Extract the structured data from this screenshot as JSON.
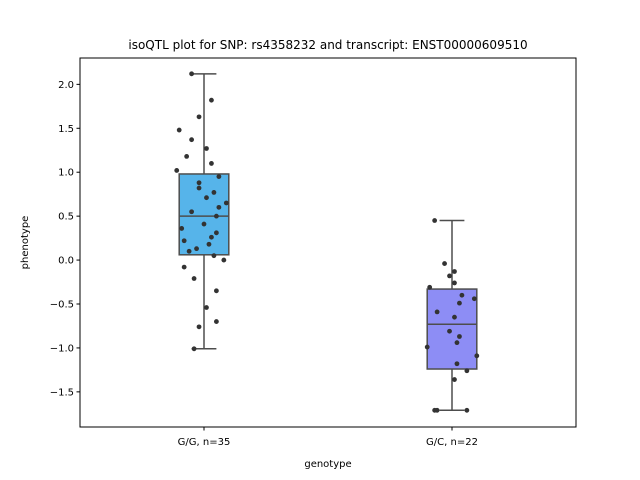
{
  "chart_data": {
    "type": "box",
    "title": "isoQTL plot for SNP: rs4358232 and transcript: ENST00000609510",
    "xlabel": "genotype",
    "ylabel": "phenotype",
    "ylim": [
      -1.9,
      2.3
    ],
    "yticks": [
      -1.5,
      -1.0,
      -0.5,
      0.0,
      0.5,
      1.0,
      1.5,
      2.0
    ],
    "ytick_labels": [
      "−1.5",
      "−1.0",
      "−0.5",
      "0.0",
      "0.5",
      "1.0",
      "1.5",
      "2.0"
    ],
    "grid": false,
    "categories": [
      "G/G, n=35",
      "G/C, n=22"
    ],
    "colors": {
      "box": [
        "#56b4ea",
        "#8d8df5"
      ],
      "line": "#4d4d4d",
      "point": "#333333"
    },
    "boxes": [
      {
        "category": "G/G, n=35",
        "whisker_low": -1.01,
        "q1": 0.06,
        "median": 0.5,
        "q3": 0.98,
        "whisker_high": 2.12,
        "points": [
          {
            "dx": -0.05,
            "y": 2.12
          },
          {
            "dx": 0.03,
            "y": 1.82
          },
          {
            "dx": -0.02,
            "y": 1.63
          },
          {
            "dx": -0.1,
            "y": 1.48
          },
          {
            "dx": -0.05,
            "y": 1.37
          },
          {
            "dx": 0.01,
            "y": 1.27
          },
          {
            "dx": -0.07,
            "y": 1.18
          },
          {
            "dx": 0.03,
            "y": 1.1
          },
          {
            "dx": -0.11,
            "y": 1.02
          },
          {
            "dx": 0.06,
            "y": 0.95
          },
          {
            "dx": -0.02,
            "y": 0.88
          },
          {
            "dx": -0.02,
            "y": 0.82
          },
          {
            "dx": 0.04,
            "y": 0.77
          },
          {
            "dx": 0.01,
            "y": 0.71
          },
          {
            "dx": 0.09,
            "y": 0.65
          },
          {
            "dx": 0.06,
            "y": 0.6
          },
          {
            "dx": -0.05,
            "y": 0.55
          },
          {
            "dx": 0.05,
            "y": 0.5
          },
          {
            "dx": 0.0,
            "y": 0.41
          },
          {
            "dx": -0.09,
            "y": 0.36
          },
          {
            "dx": 0.05,
            "y": 0.31
          },
          {
            "dx": 0.03,
            "y": 0.26
          },
          {
            "dx": -0.08,
            "y": 0.22
          },
          {
            "dx": 0.02,
            "y": 0.18
          },
          {
            "dx": -0.03,
            "y": 0.13
          },
          {
            "dx": -0.06,
            "y": 0.1
          },
          {
            "dx": 0.04,
            "y": 0.05
          },
          {
            "dx": 0.08,
            "y": 0.0
          },
          {
            "dx": -0.08,
            "y": -0.08
          },
          {
            "dx": -0.04,
            "y": -0.21
          },
          {
            "dx": 0.05,
            "y": -0.35
          },
          {
            "dx": 0.01,
            "y": -0.54
          },
          {
            "dx": 0.05,
            "y": -0.7
          },
          {
            "dx": -0.02,
            "y": -0.76
          },
          {
            "dx": -0.04,
            "y": -1.01
          }
        ]
      },
      {
        "category": "G/C, n=22",
        "whisker_low": -1.71,
        "q1": -1.24,
        "median": -0.73,
        "q3": -0.33,
        "whisker_high": 0.45,
        "points": [
          {
            "dx": -0.07,
            "y": 0.45
          },
          {
            "dx": -0.03,
            "y": -0.04
          },
          {
            "dx": 0.01,
            "y": -0.13
          },
          {
            "dx": -0.01,
            "y": -0.18
          },
          {
            "dx": 0.01,
            "y": -0.26
          },
          {
            "dx": -0.09,
            "y": -0.31
          },
          {
            "dx": 0.04,
            "y": -0.4
          },
          {
            "dx": 0.09,
            "y": -0.44
          },
          {
            "dx": 0.03,
            "y": -0.49
          },
          {
            "dx": -0.06,
            "y": -0.59
          },
          {
            "dx": 0.01,
            "y": -0.65
          },
          {
            "dx": -0.01,
            "y": -0.81
          },
          {
            "dx": 0.03,
            "y": -0.87
          },
          {
            "dx": 0.02,
            "y": -0.94
          },
          {
            "dx": -0.1,
            "y": -0.99
          },
          {
            "dx": 0.1,
            "y": -1.09
          },
          {
            "dx": 0.02,
            "y": -1.18
          },
          {
            "dx": 0.06,
            "y": -1.26
          },
          {
            "dx": 0.01,
            "y": -1.36
          },
          {
            "dx": -0.07,
            "y": -1.71
          },
          {
            "dx": -0.06,
            "y": -1.71
          },
          {
            "dx": 0.06,
            "y": -1.71
          }
        ]
      }
    ]
  }
}
